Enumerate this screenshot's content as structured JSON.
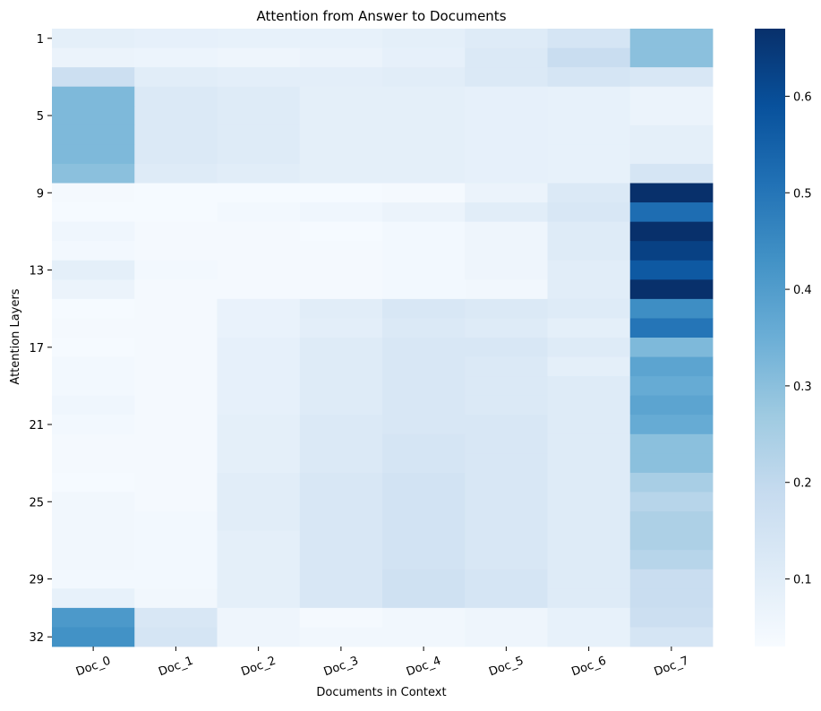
{
  "chart_data": {
    "type": "heatmap",
    "title": "Attention from Answer to Documents",
    "xlabel": "Documents in Context",
    "ylabel": "Attention Layers",
    "x_categories": [
      "Doc_0",
      "Doc_1",
      "Doc_2",
      "Doc_3",
      "Doc_4",
      "Doc_5",
      "Doc_6",
      "Doc_7"
    ],
    "y_tick_labels": [
      "1",
      "5",
      "9",
      "13",
      "17",
      "21",
      "25",
      "29",
      "32"
    ],
    "y_tick_layers": [
      1,
      5,
      9,
      13,
      17,
      21,
      25,
      29,
      32
    ],
    "colorbar": {
      "range": [
        0.03,
        0.67
      ],
      "tick_values": [
        0.1,
        0.2,
        0.3,
        0.4,
        0.5,
        0.6
      ],
      "tick_labels": [
        "0.1",
        "0.2",
        "0.3",
        "0.4",
        "0.5",
        "0.6"
      ],
      "colormap": "Blues"
    },
    "rows": [
      [
        0.09,
        0.085,
        0.08,
        0.08,
        0.09,
        0.11,
        0.14,
        0.3
      ],
      [
        0.07,
        0.065,
        0.06,
        0.07,
        0.085,
        0.12,
        0.18,
        0.3
      ],
      [
        0.17,
        0.1,
        0.095,
        0.095,
        0.1,
        0.12,
        0.14,
        0.13
      ],
      [
        0.32,
        0.12,
        0.11,
        0.09,
        0.09,
        0.085,
        0.08,
        0.07
      ],
      [
        0.32,
        0.12,
        0.11,
        0.09,
        0.09,
        0.085,
        0.08,
        0.07
      ],
      [
        0.32,
        0.12,
        0.11,
        0.09,
        0.09,
        0.085,
        0.08,
        0.09
      ],
      [
        0.32,
        0.12,
        0.11,
        0.09,
        0.09,
        0.085,
        0.08,
        0.09
      ],
      [
        0.3,
        0.11,
        0.1,
        0.09,
        0.09,
        0.085,
        0.08,
        0.14
      ],
      [
        0.04,
        0.035,
        0.035,
        0.035,
        0.04,
        0.07,
        0.12,
        0.67
      ],
      [
        0.035,
        0.035,
        0.045,
        0.055,
        0.07,
        0.1,
        0.13,
        0.52
      ],
      [
        0.055,
        0.04,
        0.04,
        0.035,
        0.045,
        0.06,
        0.11,
        0.67
      ],
      [
        0.045,
        0.04,
        0.04,
        0.04,
        0.045,
        0.06,
        0.11,
        0.63
      ],
      [
        0.09,
        0.045,
        0.04,
        0.04,
        0.045,
        0.06,
        0.1,
        0.57
      ],
      [
        0.07,
        0.04,
        0.04,
        0.04,
        0.045,
        0.05,
        0.1,
        0.67
      ],
      [
        0.035,
        0.04,
        0.075,
        0.1,
        0.13,
        0.12,
        0.11,
        0.44
      ],
      [
        0.04,
        0.04,
        0.075,
        0.095,
        0.12,
        0.11,
        0.09,
        0.5
      ],
      [
        0.035,
        0.04,
        0.085,
        0.11,
        0.13,
        0.13,
        0.11,
        0.32
      ],
      [
        0.045,
        0.04,
        0.085,
        0.11,
        0.13,
        0.12,
        0.09,
        0.38
      ],
      [
        0.045,
        0.04,
        0.085,
        0.11,
        0.13,
        0.12,
        0.11,
        0.36
      ],
      [
        0.055,
        0.04,
        0.085,
        0.11,
        0.13,
        0.12,
        0.11,
        0.38
      ],
      [
        0.045,
        0.04,
        0.09,
        0.12,
        0.13,
        0.13,
        0.11,
        0.36
      ],
      [
        0.04,
        0.04,
        0.09,
        0.12,
        0.14,
        0.13,
        0.11,
        0.3
      ],
      [
        0.04,
        0.04,
        0.09,
        0.12,
        0.14,
        0.13,
        0.11,
        0.3
      ],
      [
        0.035,
        0.04,
        0.1,
        0.13,
        0.15,
        0.13,
        0.11,
        0.25
      ],
      [
        0.05,
        0.04,
        0.1,
        0.13,
        0.15,
        0.13,
        0.11,
        0.22
      ],
      [
        0.05,
        0.045,
        0.1,
        0.13,
        0.15,
        0.13,
        0.11,
        0.24
      ],
      [
        0.05,
        0.045,
        0.09,
        0.13,
        0.15,
        0.13,
        0.11,
        0.24
      ],
      [
        0.05,
        0.045,
        0.09,
        0.13,
        0.15,
        0.13,
        0.11,
        0.22
      ],
      [
        0.045,
        0.045,
        0.09,
        0.13,
        0.16,
        0.14,
        0.11,
        0.18
      ],
      [
        0.08,
        0.05,
        0.09,
        0.13,
        0.16,
        0.14,
        0.11,
        0.18
      ],
      [
        0.41,
        0.13,
        0.06,
        0.04,
        0.05,
        0.06,
        0.08,
        0.17
      ],
      [
        0.43,
        0.14,
        0.06,
        0.05,
        0.05,
        0.06,
        0.08,
        0.14
      ]
    ]
  }
}
